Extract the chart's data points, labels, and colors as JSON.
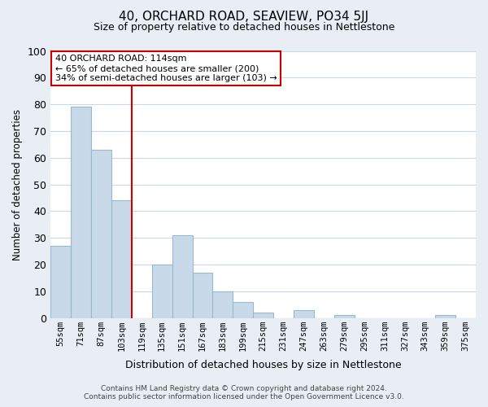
{
  "title": "40, ORCHARD ROAD, SEAVIEW, PO34 5JJ",
  "subtitle": "Size of property relative to detached houses in Nettlestone",
  "xlabel": "Distribution of detached houses by size in Nettlestone",
  "ylabel": "Number of detached properties",
  "footer_line1": "Contains HM Land Registry data © Crown copyright and database right 2024.",
  "footer_line2": "Contains public sector information licensed under the Open Government Licence v3.0.",
  "bar_labels": [
    "55sqm",
    "71sqm",
    "87sqm",
    "103sqm",
    "119sqm",
    "135sqm",
    "151sqm",
    "167sqm",
    "183sqm",
    "199sqm",
    "215sqm",
    "231sqm",
    "247sqm",
    "263sqm",
    "279sqm",
    "295sqm",
    "311sqm",
    "327sqm",
    "343sqm",
    "359sqm",
    "375sqm"
  ],
  "bar_values": [
    27,
    79,
    63,
    44,
    0,
    20,
    31,
    17,
    10,
    6,
    2,
    0,
    3,
    0,
    1,
    0,
    0,
    0,
    0,
    1,
    0
  ],
  "bar_color": "#c8daea",
  "bar_edge_color": "#9ab8cc",
  "grid_color": "#c8d8e4",
  "vline_x": 4,
  "vline_color": "#cc0000",
  "annotation_title": "40 ORCHARD ROAD: 114sqm",
  "annotation_line2": "← 65% of detached houses are smaller (200)",
  "annotation_line3": "34% of semi-detached houses are larger (103) →",
  "annotation_box_color": "white",
  "annotation_box_edge": "#cc0000",
  "ylim": [
    0,
    100
  ],
  "yticks": [
    0,
    10,
    20,
    30,
    40,
    50,
    60,
    70,
    80,
    90,
    100
  ],
  "figure_bg": "#e8eef4",
  "plot_bg": "white"
}
